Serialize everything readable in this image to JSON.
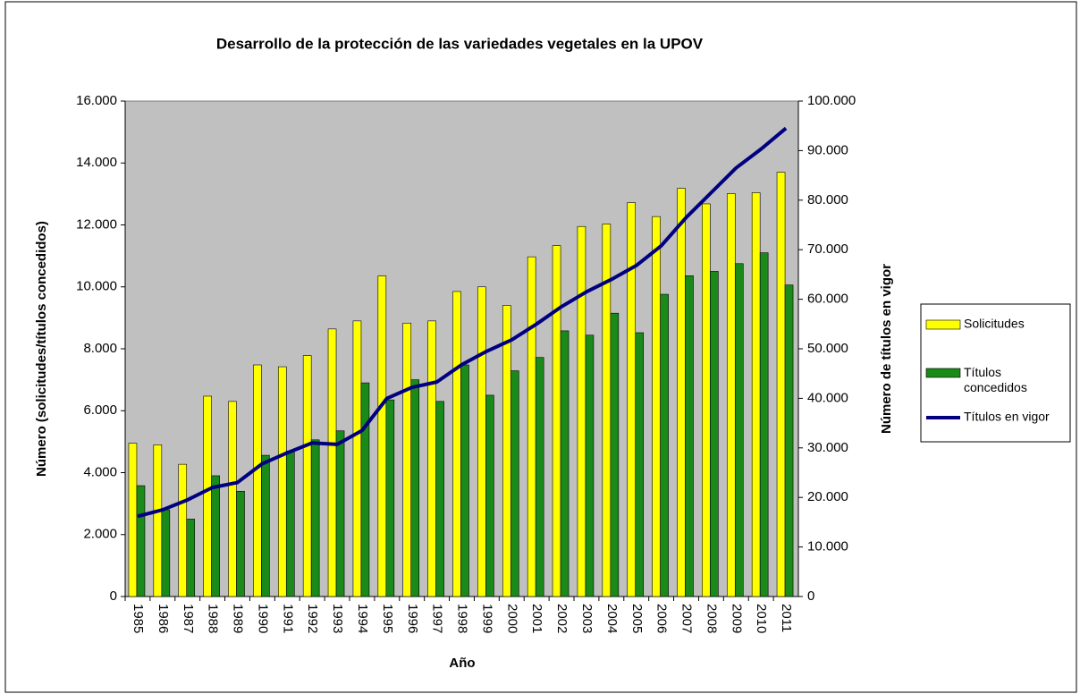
{
  "chart_data": {
    "type": "bar-line",
    "title": "Desarrollo de la protección de las variedades vegetales en la UPOV",
    "xlabel": "Año",
    "ylabel": "Número (solicitudes/títulos concedidos)",
    "y2label": "Número de títulos en vigor",
    "categories": [
      "1985",
      "1986",
      "1987",
      "1988",
      "1989",
      "1990",
      "1991",
      "1992",
      "1993",
      "1994",
      "1995",
      "1996",
      "1997",
      "1998",
      "1999",
      "2000",
      "2001",
      "2002",
      "2003",
      "2004",
      "2005",
      "2006",
      "2007",
      "2008",
      "2009",
      "2010",
      "2011"
    ],
    "series": [
      {
        "name": "Solicitudes",
        "type": "bar",
        "color": "#ffff00",
        "values": [
          4950,
          4900,
          4270,
          6470,
          6300,
          7480,
          7420,
          7780,
          8640,
          8900,
          10350,
          8830,
          8900,
          9850,
          10000,
          9400,
          10970,
          11330,
          11950,
          12030,
          12720,
          12270,
          13180,
          12680,
          13010,
          13040,
          13700
        ]
      },
      {
        "name": "Títulos concedidos",
        "type": "bar",
        "color": "#1a8a1a",
        "values": [
          3580,
          2800,
          2500,
          3900,
          3400,
          4560,
          4700,
          5060,
          5350,
          6900,
          6350,
          7000,
          6300,
          7480,
          6500,
          7290,
          7720,
          8580,
          8440,
          9150,
          8520,
          9760,
          10360,
          10500,
          10750,
          11100,
          10060
        ]
      },
      {
        "name": "Títulos en vigor",
        "type": "line",
        "axis": "y2",
        "color": "#000080",
        "values": [
          16200,
          17500,
          19500,
          22000,
          23000,
          26800,
          29000,
          31000,
          30700,
          33500,
          40000,
          42200,
          43300,
          46800,
          49500,
          51800,
          55000,
          58500,
          61500,
          64000,
          66800,
          70800,
          76500,
          81500,
          86500,
          90300,
          94500
        ]
      }
    ],
    "ylim": [
      0,
      16000
    ],
    "yticks": [
      0,
      {
        "value": 2000,
        "label": "2.000"
      },
      {
        "value": 4000,
        "label": "4.000"
      },
      {
        "value": 6000,
        "label": "6.000"
      },
      {
        "value": 8000,
        "label": "8.000"
      },
      {
        "value": 10000,
        "label": "10.000"
      },
      {
        "value": 12000,
        "label": "12.000"
      },
      {
        "value": 14000,
        "label": "14.000"
      },
      {
        "value": 16000,
        "label": "16.000"
      }
    ],
    "y2lim": [
      0,
      100000
    ],
    "y2ticks": [
      0,
      {
        "value": 10000,
        "label": "10.000"
      },
      {
        "value": 20000,
        "label": "20.000"
      },
      {
        "value": 30000,
        "label": "30.000"
      },
      {
        "value": 40000,
        "label": "40.000"
      },
      {
        "value": 50000,
        "label": "50.000"
      },
      {
        "value": 60000,
        "label": "60.000"
      },
      {
        "value": 70000,
        "label": "70.000"
      },
      {
        "value": 80000,
        "label": "80.000"
      },
      {
        "value": 90000,
        "label": "90.000"
      },
      {
        "value": 100000,
        "label": "100.000"
      }
    ],
    "plot_background": "#c0c0c0",
    "legend": "right"
  }
}
